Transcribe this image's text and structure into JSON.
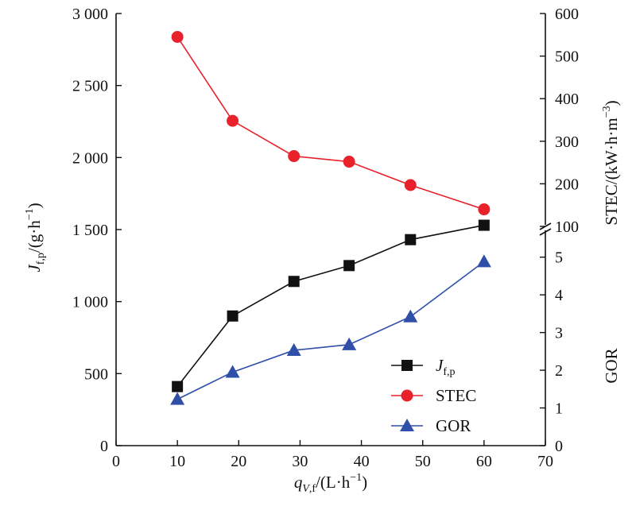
{
  "chart_data": {
    "type": "line",
    "x": [
      10,
      19,
      29,
      38,
      48,
      60
    ],
    "xlim": [
      0,
      70
    ],
    "xticks": [
      0,
      10,
      20,
      30,
      40,
      50,
      60,
      70
    ],
    "xlabel_parts": {
      "main": "q",
      "sub": "V,f",
      "unit": "/(L·h",
      "exp": "−1",
      "close": ")"
    },
    "y_left": {
      "lim": [
        0,
        3000
      ],
      "ticks": [
        0,
        500,
        1000,
        1500,
        2000,
        2500,
        3000
      ],
      "tick_labels": [
        "0",
        "500",
        "1 000",
        "1 500",
        "2 000",
        "2 500",
        "3 000"
      ],
      "label_parts": {
        "main": "J",
        "sub": "f,p",
        "unit": "/(g·h",
        "exp": "−1",
        "close": ")"
      }
    },
    "y_right_top": {
      "lim": [
        100,
        600
      ],
      "ticks": [
        100,
        200,
        300,
        400,
        500,
        600
      ],
      "tick_labels": [
        "100",
        "200",
        "300",
        "400",
        "500",
        "600"
      ],
      "label_parts": {
        "main": "STEC/(kW·h·m",
        "exp": "−3",
        "close": ")"
      }
    },
    "y_right_bottom": {
      "lim": [
        0,
        5.5
      ],
      "ticks": [
        0,
        1,
        2,
        3,
        4,
        5
      ],
      "tick_labels": [
        "0",
        "1",
        "2",
        "3",
        "4",
        "5"
      ],
      "label": "GOR"
    },
    "series": [
      {
        "name_main": "J",
        "name_sub": "f,p",
        "axis": "left",
        "marker": "square",
        "color": "#111111",
        "values": [
          410,
          900,
          1140,
          1250,
          1430,
          1530
        ]
      },
      {
        "name": "STEC",
        "axis": "right_top",
        "marker": "circle",
        "color": "#e8212b",
        "values": [
          545,
          348,
          265,
          252,
          197,
          140
        ]
      },
      {
        "name": "GOR",
        "axis": "right_bottom",
        "marker": "triangle",
        "color": "#2f4fa8",
        "values": [
          1.23,
          1.95,
          2.53,
          2.68,
          3.42,
          4.88
        ]
      }
    ],
    "legend_position": "bottom-right"
  }
}
